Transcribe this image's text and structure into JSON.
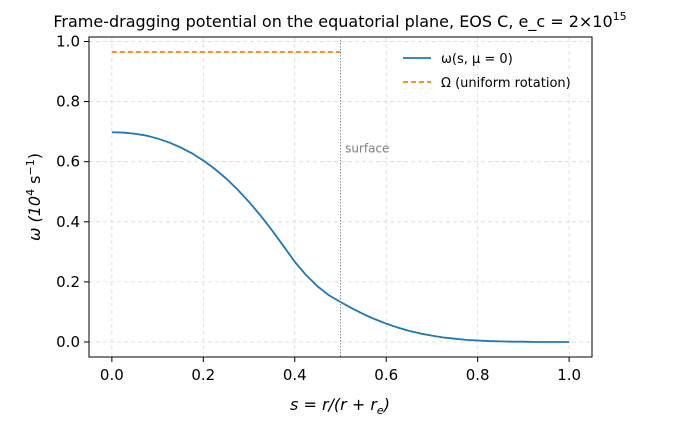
{
  "chart_data": {
    "type": "line",
    "title_main": "Frame-dragging potential on the equatorial plane, EOS C, e_c = 2×10",
    "title_exponent": "15",
    "xlabel": {
      "pre": "s = r/(r + r",
      "sub": "e",
      "post": ")"
    },
    "ylabel": {
      "pre": "ω (10",
      "sup1": "4",
      "mid": " s",
      "sup2": "−1",
      "post": ")"
    },
    "xlim": [
      -0.05,
      1.05
    ],
    "ylim": [
      -0.05,
      1.015
    ],
    "x_ticks": [
      0.0,
      0.2,
      0.4,
      0.6,
      0.8,
      1.0
    ],
    "x_tick_labels": [
      "0.0",
      "0.2",
      "0.4",
      "0.6",
      "0.8",
      "1.0"
    ],
    "y_ticks": [
      0.0,
      0.2,
      0.4,
      0.6,
      0.8,
      1.0
    ],
    "y_tick_labels": [
      "0.0",
      "0.2",
      "0.4",
      "0.6",
      "0.8",
      "1.0"
    ],
    "grid": true,
    "legend_position": "top-right",
    "series": [
      {
        "name": "ω(s, μ = 0)",
        "color": "#1f77b4",
        "style": "solid",
        "x": [
          0.0,
          0.025,
          0.05,
          0.075,
          0.1,
          0.125,
          0.15,
          0.175,
          0.2,
          0.225,
          0.25,
          0.275,
          0.3,
          0.325,
          0.35,
          0.375,
          0.4,
          0.425,
          0.45,
          0.475,
          0.5,
          0.525,
          0.55,
          0.575,
          0.6,
          0.625,
          0.65,
          0.675,
          0.7,
          0.725,
          0.75,
          0.775,
          0.8,
          0.825,
          0.85,
          0.875,
          0.9,
          0.925,
          0.95,
          0.975,
          1.0
        ],
        "y": [
          0.698,
          0.697,
          0.693,
          0.687,
          0.677,
          0.664,
          0.648,
          0.628,
          0.604,
          0.576,
          0.544,
          0.507,
          0.466,
          0.421,
          0.372,
          0.32,
          0.267,
          0.222,
          0.185,
          0.155,
          0.133,
          0.112,
          0.093,
          0.076,
          0.061,
          0.048,
          0.037,
          0.028,
          0.021,
          0.015,
          0.011,
          0.007,
          0.005,
          0.003,
          0.002,
          0.001,
          0.001,
          0.0,
          0.0,
          0.0,
          0.0
        ]
      },
      {
        "name": "Ω (uniform rotation)",
        "color": "#ff7f0e",
        "style": "dashed",
        "x": [
          0.0,
          0.5
        ],
        "y": [
          0.965,
          0.965
        ]
      }
    ],
    "annotations": [
      {
        "text": "surface",
        "x": 0.51,
        "y": 0.63,
        "line_x": 0.5
      }
    ]
  }
}
